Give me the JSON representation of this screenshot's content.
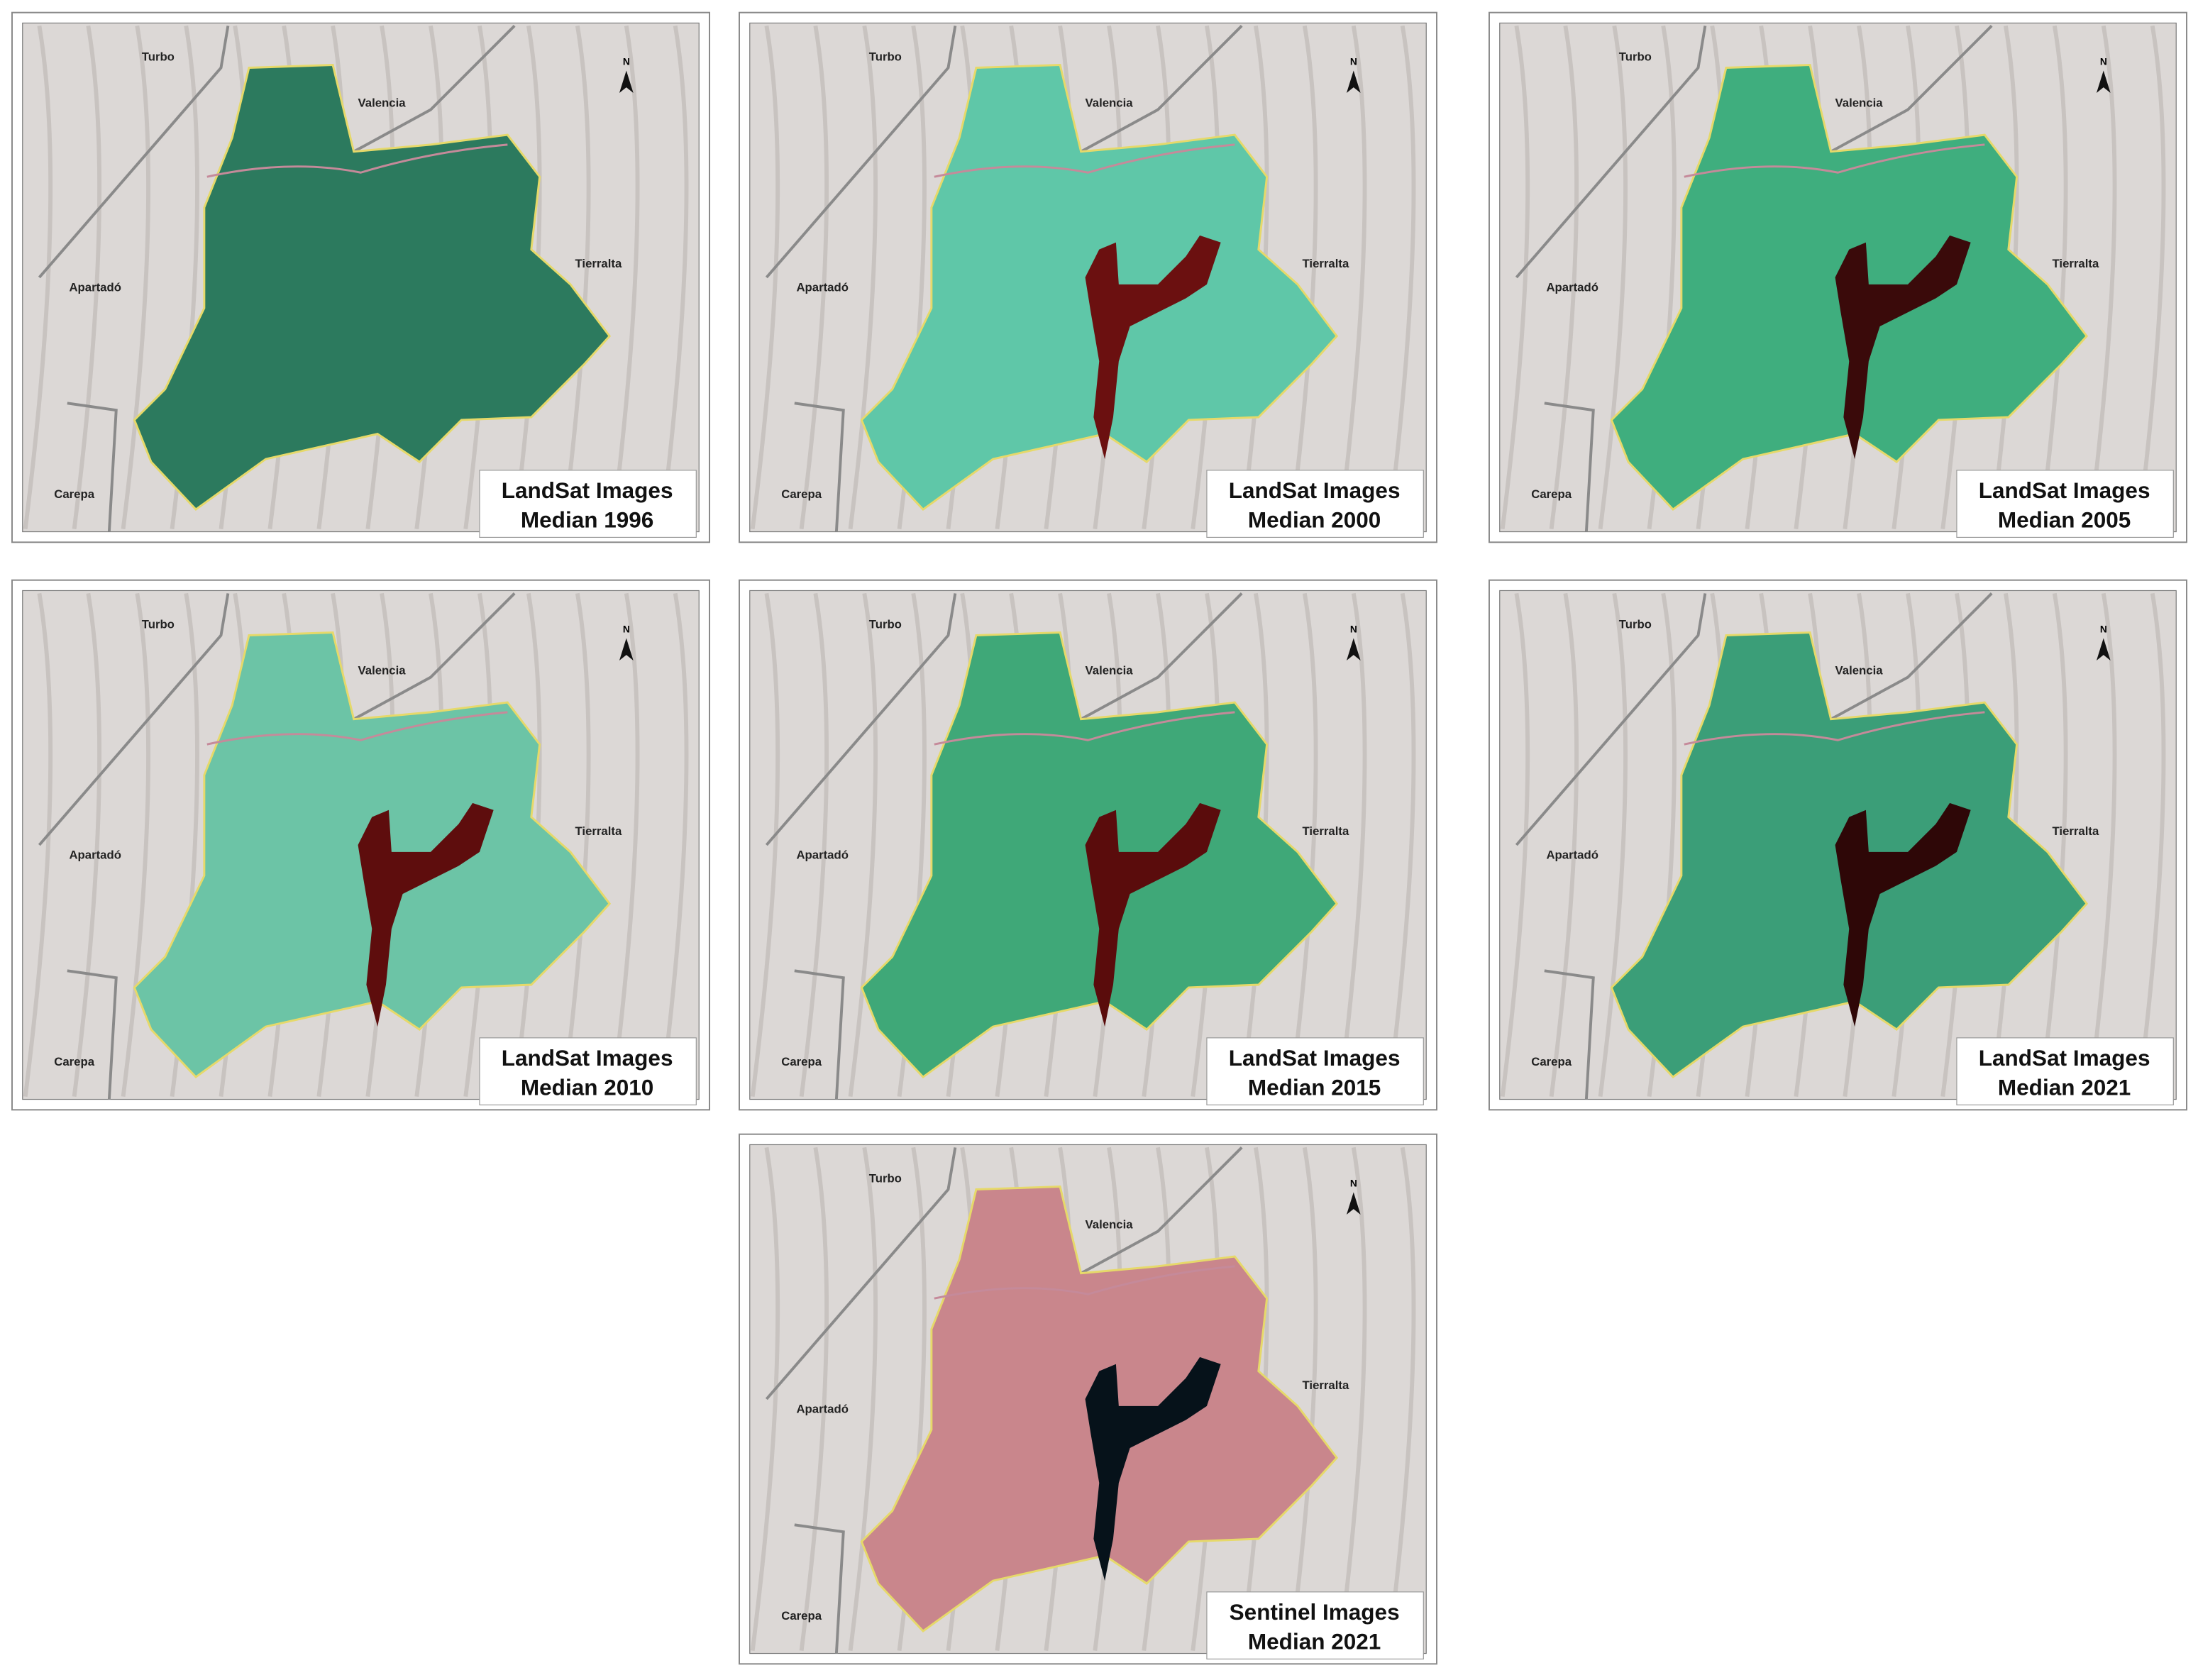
{
  "places": [
    "Turbo",
    "Valencia",
    "Tierralta",
    "Apartadó",
    "Carepa"
  ],
  "north": "N",
  "panels": [
    {
      "title_lines": [
        "LandSat Images",
        "Median 1996"
      ],
      "fill": "#2c7a5e",
      "reservoir": null
    },
    {
      "title_lines": [
        "LandSat Images",
        "Median 2000"
      ],
      "fill": "#5fc7a8",
      "reservoir": "#6b1010"
    },
    {
      "title_lines": [
        "LandSat Images",
        "Median 2005"
      ],
      "fill": "#3fae7e",
      "reservoir": "#3a0a0a"
    },
    {
      "title_lines": [
        "LandSat Images",
        "Median 2010"
      ],
      "fill": "#6cc4a6",
      "reservoir": "#5e0d0d"
    },
    {
      "title_lines": [
        "LandSat Images",
        "Median 2015"
      ],
      "fill": "#3fa878",
      "reservoir": "#5a0c0c"
    },
    {
      "title_lines": [
        "LandSat Images",
        "Median 2021"
      ],
      "fill": "#3b9e78",
      "reservoir": "#2e0707"
    },
    {
      "title_lines": [
        "Sentinel Images",
        "Median 2021"
      ],
      "fill": "#c9868c",
      "reservoir": "#06121a"
    }
  ]
}
